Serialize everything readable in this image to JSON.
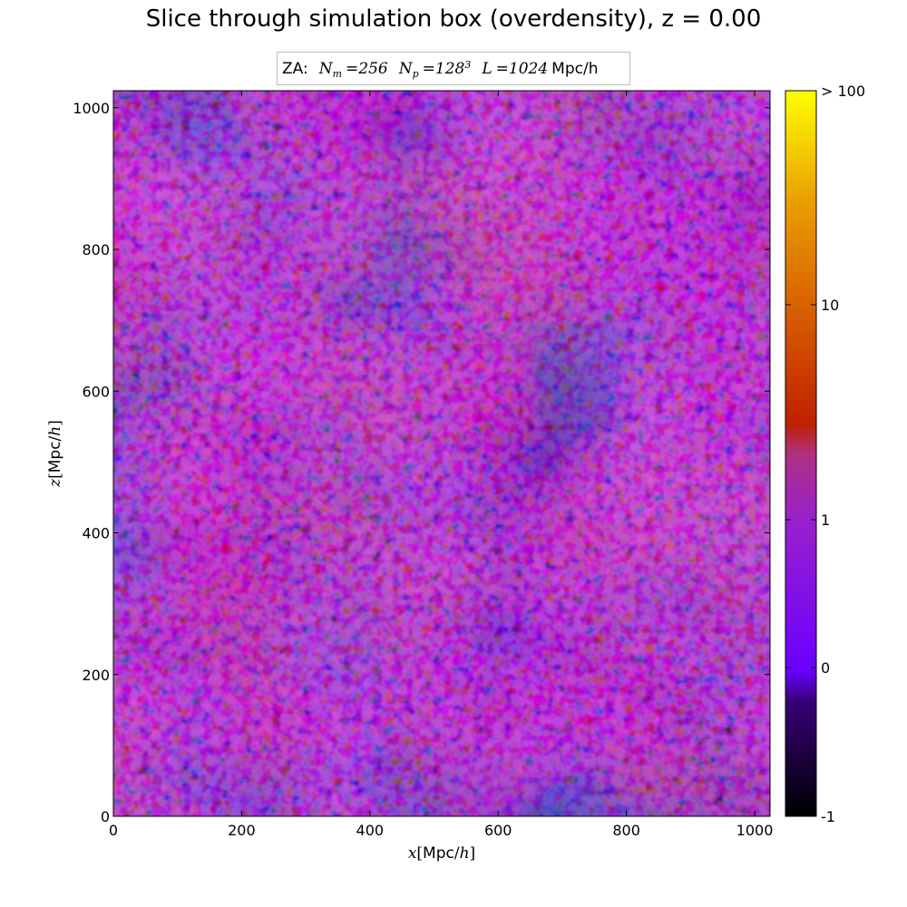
{
  "title": "Slice through simulation box (overdensity), z = 0.00",
  "legend": {
    "prefix": "ZA:",
    "nm_symbol": "N",
    "nm_sub": "m",
    "nm_value": "256",
    "np_symbol": "N",
    "np_sub": "p",
    "np_base": "128",
    "np_exp": "3",
    "l_symbol": "L",
    "l_value": "1024",
    "l_unit": "Mpc/h"
  },
  "chart_data": {
    "type": "heatmap",
    "title": "Slice through simulation box (overdensity), z = 0.00",
    "xlabel": "x[Mpc/h]",
    "ylabel": "z[Mpc/h]",
    "xlim": [
      0,
      1024
    ],
    "ylim": [
      0,
      1024
    ],
    "x_ticks": [
      0,
      200,
      400,
      600,
      800,
      1000
    ],
    "y_ticks": [
      0,
      200,
      400,
      600,
      800,
      1000
    ],
    "colorbar": {
      "ticks": [
        "-1",
        "0",
        "1",
        "10",
        "> 100"
      ],
      "scale": "symlog",
      "colormap": [
        "#000000",
        "#6a00ff",
        "#9a20cc",
        "#c02000",
        "#e8900a",
        "#ffff00"
      ]
    },
    "values": "dense 2D overdensity field (simulated random texture)"
  }
}
